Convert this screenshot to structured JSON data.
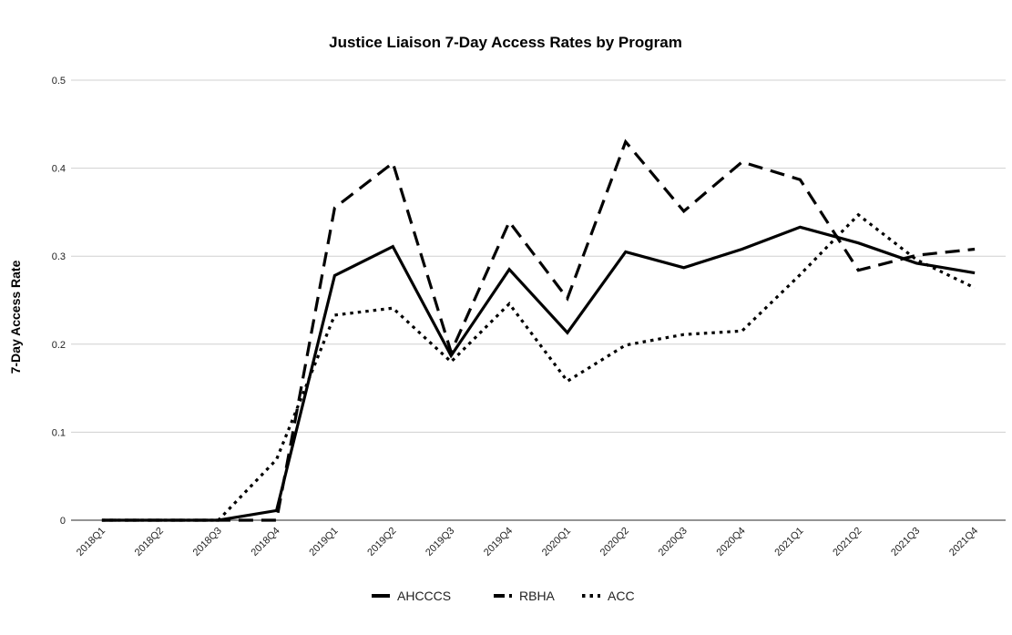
{
  "chart_data": {
    "type": "line",
    "title": "Justice Liaison 7-Day Access Rates by Program",
    "xlabel": "",
    "ylabel": "7-Day Access Rate",
    "categories": [
      "2018Q1",
      "2018Q2",
      "2018Q3",
      "2018Q4",
      "2019Q1",
      "2019Q2",
      "2019Q3",
      "2019Q4",
      "2020Q1",
      "2020Q2",
      "2020Q3",
      "2020Q4",
      "2021Q1",
      "2021Q2",
      "2021Q3",
      "2021Q4"
    ],
    "ylim": [
      0,
      0.5
    ],
    "yticks": [
      "0",
      "0.1",
      "0.2",
      "0.3",
      "0.4",
      "0.5"
    ],
    "grid": true,
    "legend_position": "bottom",
    "series": [
      {
        "name": "AHCCCS",
        "style": "solid",
        "values": [
          0,
          0,
          0,
          0.011,
          0.278,
          0.311,
          0.187,
          0.285,
          0.213,
          0.305,
          0.287,
          0.308,
          0.333,
          0.315,
          0.292,
          0.281
        ]
      },
      {
        "name": "RBHA",
        "style": "dashed",
        "values": [
          0,
          0,
          0,
          0,
          0.355,
          0.406,
          0.191,
          0.339,
          0.252,
          0.43,
          0.351,
          0.407,
          0.387,
          0.284,
          0.301,
          0.308
        ]
      },
      {
        "name": "ACC",
        "style": "dotted",
        "values": [
          0,
          0,
          0,
          0.069,
          0.233,
          0.241,
          0.18,
          0.246,
          0.158,
          0.199,
          0.211,
          0.215,
          0.279,
          0.347,
          0.296,
          0.264
        ]
      }
    ],
    "colors": {
      "line": "#000000",
      "grid": "#d0d0d0",
      "axis": "#555555"
    }
  }
}
